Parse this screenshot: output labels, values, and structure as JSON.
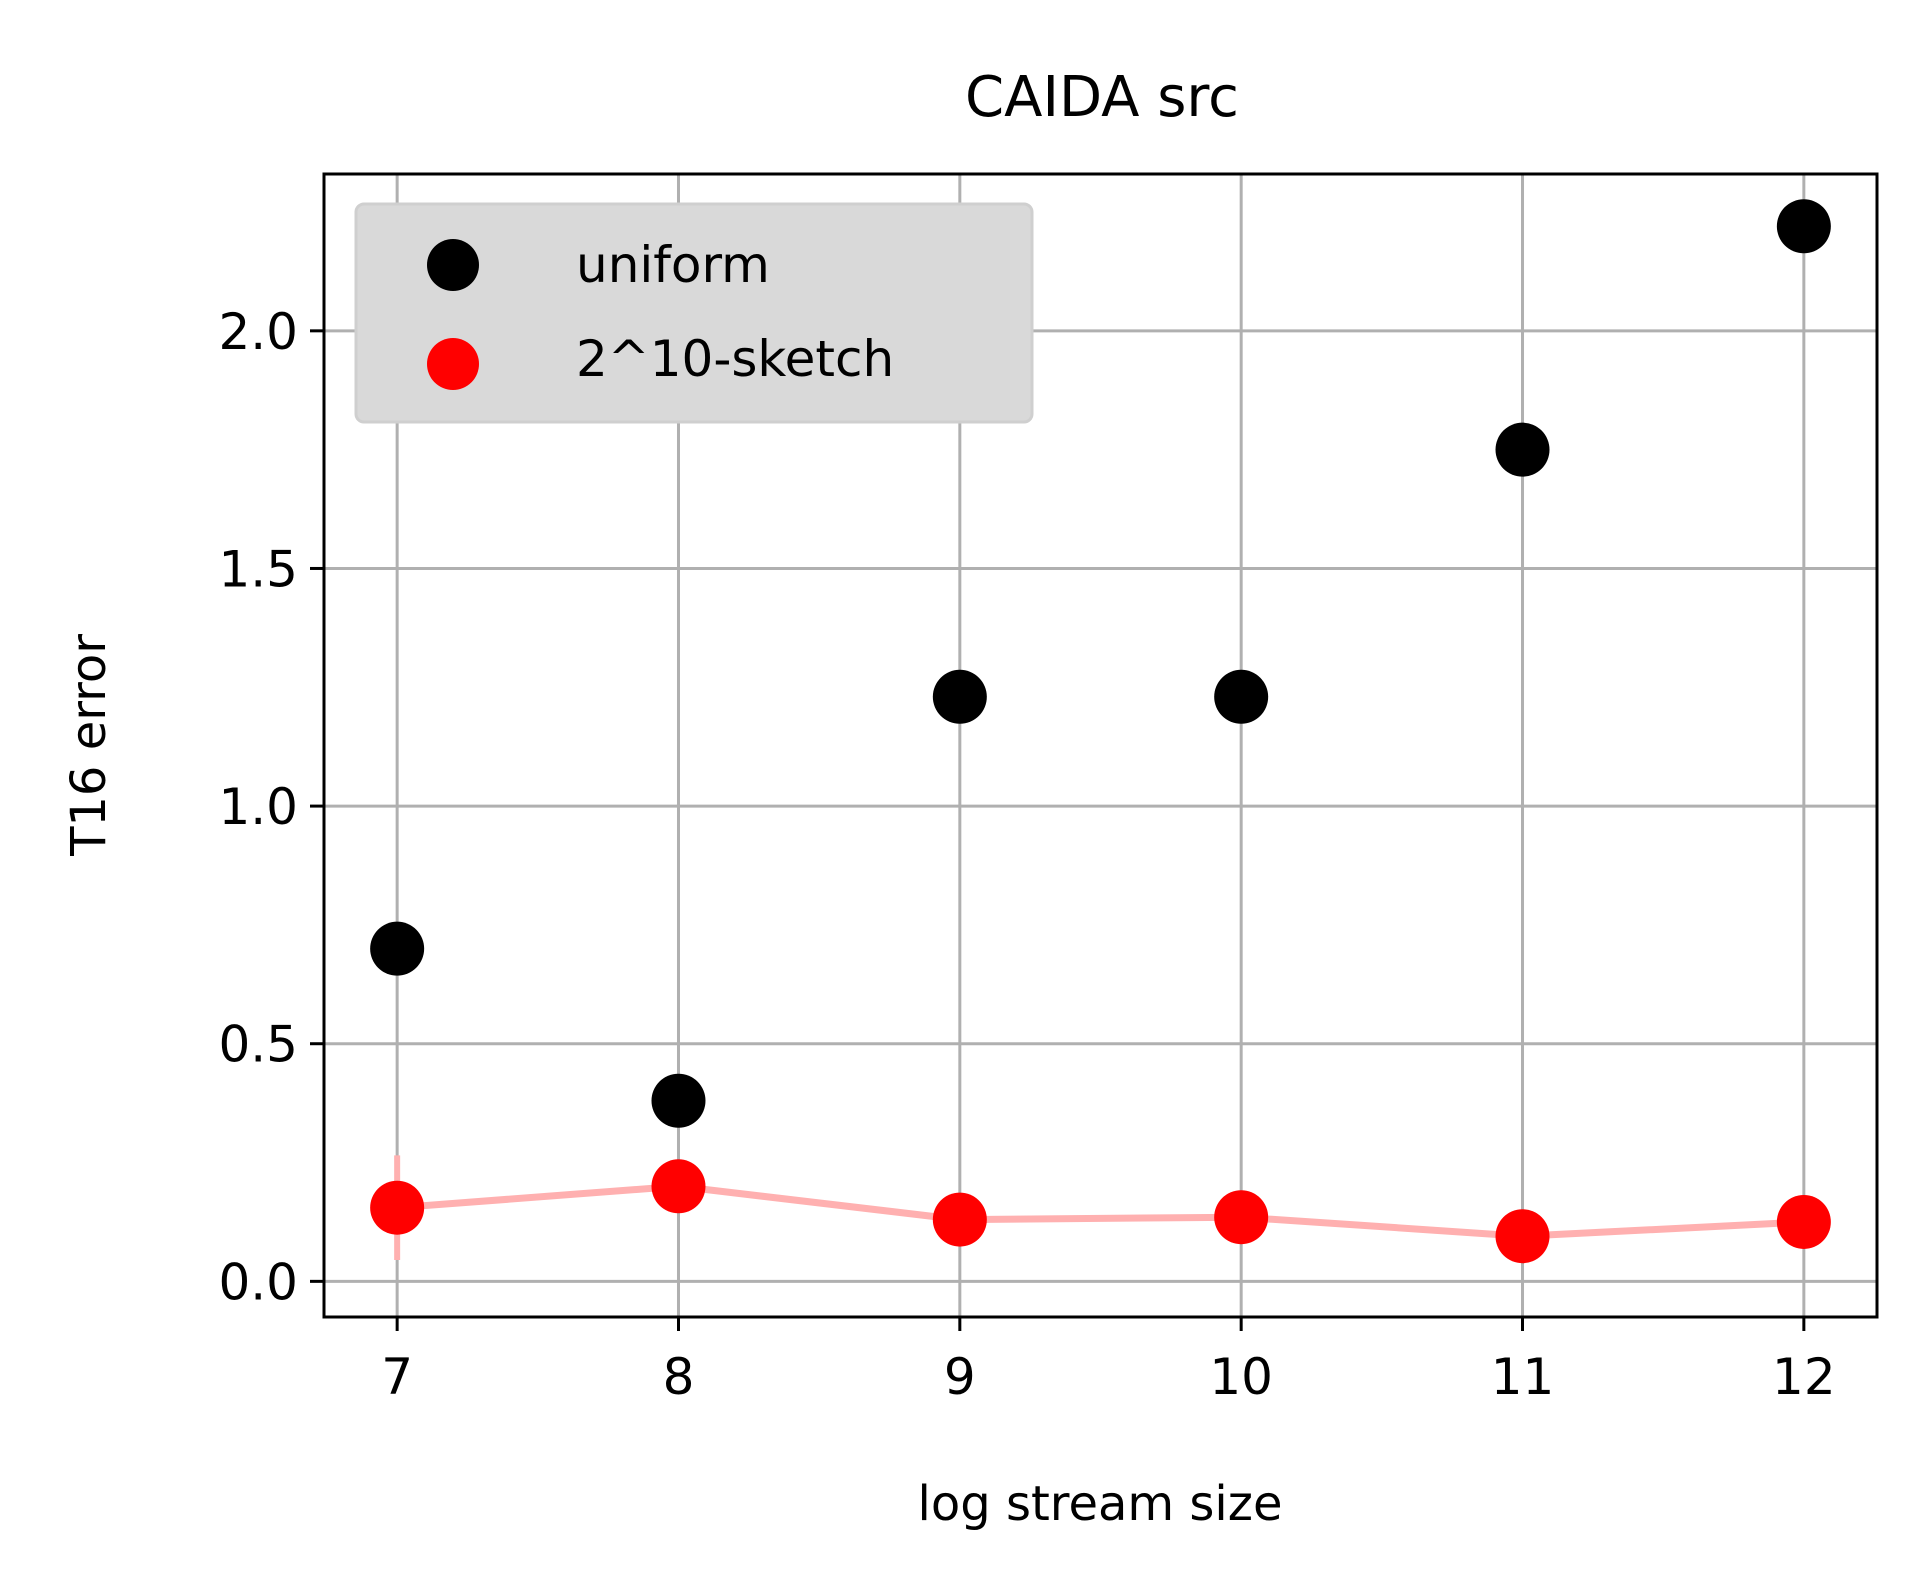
{
  "chart_data": {
    "type": "scatter",
    "title": "CAIDA src",
    "xlabel": "log stream size",
    "ylabel": "T16 error",
    "xlim": [
      6.74,
      12.26
    ],
    "ylim": [
      -0.075,
      2.33
    ],
    "x_ticks": [
      7,
      8,
      9,
      10,
      11,
      12
    ],
    "x_tick_labels": [
      "7",
      "8",
      "9",
      "10",
      "11",
      "12"
    ],
    "y_ticks": [
      0.0,
      0.5,
      1.0,
      1.5,
      2.0
    ],
    "y_tick_labels": [
      "0.0",
      "0.5",
      "1.0",
      "1.5",
      "2.0"
    ],
    "grid": true,
    "legend_position": "top-left",
    "series": [
      {
        "name": "uniform",
        "color": "#000000",
        "x": [
          7,
          8,
          9,
          10,
          11,
          12
        ],
        "values": [
          0.7,
          0.38,
          1.23,
          1.23,
          1.75,
          2.22
        ]
      },
      {
        "name": "2^10-sketch",
        "color": "#ff0000",
        "line_color": "#ffb0b0",
        "x": [
          7,
          8,
          9,
          10,
          11,
          12
        ],
        "values": [
          0.155,
          0.2,
          0.13,
          0.135,
          0.095,
          0.125
        ],
        "error_low": [
          0.045,
          0.16,
          0.13,
          0.135,
          0.095,
          0.125
        ],
        "error_high": [
          0.265,
          0.24,
          0.13,
          0.135,
          0.095,
          0.125
        ]
      }
    ]
  }
}
